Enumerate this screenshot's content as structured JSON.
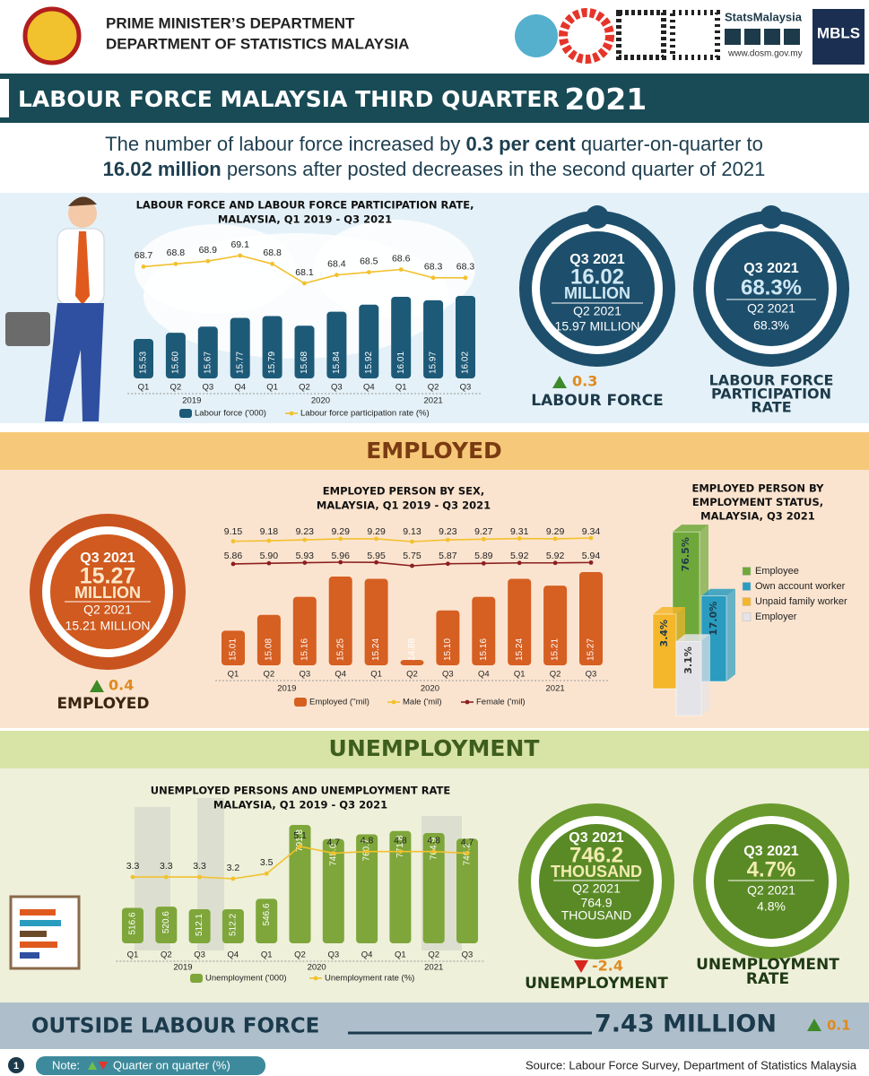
{
  "header": {
    "line1": "PRIME MINISTER’S DEPARTMENT",
    "line2": "DEPARTMENT OF STATISTICS MALAYSIA",
    "brand": "StatsMalaysia",
    "website": "www.dosm.gov.my",
    "badge": "MBLS"
  },
  "title": {
    "main": "LABOUR FORCE MALAYSIA THIRD QUARTER",
    "year": "2021"
  },
  "headline": {
    "p1": "The number of labour force increased by ",
    "b1": "0.3 per cent",
    "p2": " quarter-on-quarter to",
    "b2": "16.02 million",
    "p3": " persons after posted decreases in the second quarter of 2021"
  },
  "labour_force": {
    "period": "Q3 2021",
    "value": "16.02",
    "unit": "MILLION",
    "prev_period": "Q2 2021",
    "prev_value": "15.97 MILLION",
    "change": "0.3",
    "label": "LABOUR FORCE"
  },
  "participation": {
    "period": "Q3 2021",
    "value": "68.3%",
    "prev_period": "Q2 2021",
    "prev_value": "68.3%",
    "label": [
      "LABOUR FORCE",
      "PARTICIPATION",
      "RATE"
    ]
  },
  "employed_banner": "EMPLOYED",
  "employed": {
    "period": "Q3 2021",
    "value": "15.27",
    "unit": "MILLION",
    "prev_period": "Q2 2021",
    "prev_value": "15.21 MILLION",
    "change": "0.4",
    "label": "EMPLOYED"
  },
  "unemployment_banner": "UNEMPLOYMENT",
  "unemployed": {
    "period": "Q3 2021",
    "value": "746.2",
    "unit": "THOUSAND",
    "prev_period": "Q2 2021",
    "prev_value": [
      "764.9",
      "THOUSAND"
    ],
    "change": "-2.4",
    "label": "UNEMPLOYMENT"
  },
  "unemployment_rate": {
    "period": "Q3 2021",
    "value": "4.7%",
    "prev_period": "Q2 2021",
    "prev_value": "4.8%",
    "label": [
      "UNEMPLOYMENT",
      "RATE"
    ]
  },
  "outside": {
    "label": "OUTSIDE LABOUR FORCE",
    "value": "7.43 MILLION",
    "change": "0.1"
  },
  "footer": {
    "page": "1",
    "note": "Note:",
    "note_text": "Quarter on quarter (%)",
    "source": "Source: Labour Force Survey, Department  of Statistics Malaysia"
  },
  "chart_data": [
    {
      "type": "bar-line",
      "title": [
        "LABOUR FORCE AND LABOUR FORCE PARTICIPATION RATE,",
        "MALAYSIA, Q1 2019 - Q3 2021"
      ],
      "categories": [
        "Q1",
        "Q2",
        "Q3",
        "Q4",
        "Q1",
        "Q2",
        "Q3",
        "Q4",
        "Q1",
        "Q2",
        "Q3"
      ],
      "year_labels": [
        "2019",
        null,
        null,
        null,
        "2020",
        null,
        null,
        null,
        "2021",
        null,
        null
      ],
      "series": [
        {
          "name": "Labour force ('000)",
          "type": "bar",
          "color": "#1d5a78",
          "values": [
            15.53,
            15.6,
            15.67,
            15.77,
            15.79,
            15.68,
            15.84,
            15.92,
            16.01,
            15.97,
            16.02
          ],
          "value_labels": [
            "15.53",
            "15.60",
            "15.67",
            "15.77",
            "15.79",
            "15.68",
            "15.84",
            "15.92",
            "16.01",
            "15.97",
            "16.02"
          ]
        },
        {
          "name": "Labour force participation rate (%)",
          "type": "line",
          "color": "#f2c12e",
          "values": [
            68.7,
            68.8,
            68.9,
            69.1,
            68.8,
            68.1,
            68.4,
            68.5,
            68.6,
            68.3,
            68.3
          ]
        }
      ]
    },
    {
      "type": "bar-line",
      "title": [
        "EMPLOYED PERSON BY SEX,",
        "MALAYSIA, Q1 2019 - Q3 2021"
      ],
      "categories": [
        "Q1",
        "Q2",
        "Q3",
        "Q4",
        "Q1",
        "Q2",
        "Q3",
        "Q4",
        "Q1",
        "Q2",
        "Q3"
      ],
      "year_labels": [
        "2019",
        null,
        null,
        null,
        "2020",
        null,
        null,
        null,
        "2021",
        null,
        null
      ],
      "series": [
        {
          "name": "Employed (''mil)",
          "type": "bar",
          "color": "#d65f22",
          "values": [
            15.01,
            15.08,
            15.16,
            15.25,
            15.24,
            14.88,
            15.1,
            15.16,
            15.24,
            15.21,
            15.27
          ],
          "value_labels": [
            "15.01",
            "15.08",
            "15.16",
            "15.25",
            "15.24",
            "14.88",
            "15.10",
            "15.16",
            "15.24",
            "15.21",
            "15.27"
          ]
        },
        {
          "name": "Male ('mil)",
          "type": "line",
          "color": "#f2c12e",
          "values": [
            9.15,
            9.18,
            9.23,
            9.29,
            9.29,
            9.13,
            9.23,
            9.27,
            9.31,
            9.29,
            9.34
          ]
        },
        {
          "name": "Female ('mil)",
          "type": "line",
          "color": "#8b1e1e",
          "values": [
            5.86,
            5.9,
            5.93,
            5.96,
            5.95,
            5.75,
            5.87,
            5.89,
            5.92,
            5.92,
            5.94
          ],
          "value_labels": [
            "5.86",
            "5.90",
            "5.93",
            "5.96",
            "5.95",
            "5.75",
            "5.87",
            "5.89",
            "5.92",
            "5.92",
            "5.94"
          ]
        }
      ]
    },
    {
      "type": "bar3d",
      "title": [
        "EMPLOYED PERSON BY",
        "EMPLOYMENT STATUS,",
        "MALAYSIA, Q3 2021"
      ],
      "categories": [
        "Employee",
        "Own account worker",
        "Unpaid family worker",
        "Employer"
      ],
      "values": [
        76.5,
        17.0,
        3.4,
        3.1
      ],
      "value_labels": [
        "76.5%",
        "17.0%",
        "3.4%",
        "3.1%"
      ],
      "colors": [
        "#6fa83a",
        "#2a9cc0",
        "#f4b62b",
        "#e4e4e8"
      ]
    },
    {
      "type": "bar-line",
      "title": [
        "UNEMPLOYED PERSONS AND UNEMPLOYMENT RATE",
        "MALAYSIA, Q1 2019 - Q3 2021"
      ],
      "categories": [
        "Q1",
        "Q2",
        "Q3",
        "Q4",
        "Q1",
        "Q2",
        "Q3",
        "Q4",
        "Q1",
        "Q2",
        "Q3"
      ],
      "year_labels": [
        "2019",
        null,
        null,
        null,
        "2020",
        null,
        null,
        null,
        "2021",
        null,
        null
      ],
      "series": [
        {
          "name": "Unemployment ('000)",
          "type": "bar",
          "color": "#7ea63a",
          "values": [
            516.6,
            520.6,
            512.1,
            512.2,
            546.6,
            791.8,
            745.0,
            760.7,
            771.8,
            764.9,
            746.2
          ],
          "value_labels": [
            "516.6",
            "520.6",
            "512.1",
            "512.2",
            "546.6",
            "791.8",
            "745.0",
            "760.7",
            "771.8",
            "764.9",
            "746.2"
          ]
        },
        {
          "name": "Unemployment rate (%)",
          "type": "line",
          "color": "#f2c12e",
          "values": [
            3.3,
            3.3,
            3.3,
            3.2,
            3.5,
            5.1,
            4.7,
            4.8,
            4.8,
            4.8,
            4.7
          ]
        }
      ]
    }
  ]
}
